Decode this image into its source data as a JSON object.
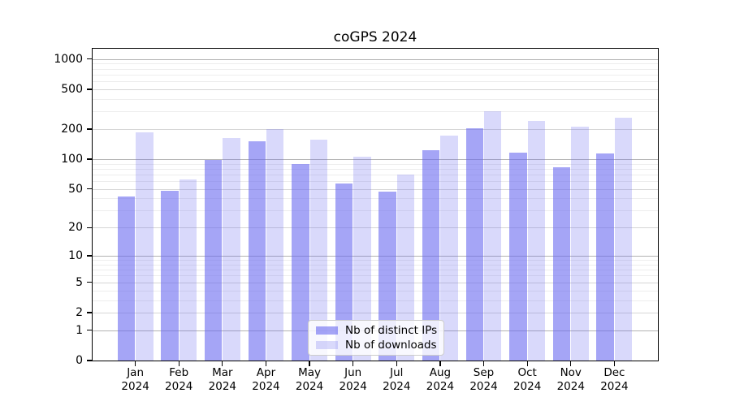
{
  "chart_data": {
    "type": "bar",
    "title": "coGPS 2024",
    "x_categories": [
      "Jan",
      "Feb",
      "Mar",
      "Apr",
      "May",
      "Jun",
      "Jul",
      "Aug",
      "Sep",
      "Oct",
      "Nov",
      "Dec"
    ],
    "x_year": "2024",
    "series": [
      {
        "name": "Nb of distinct IPs",
        "color": "rgba(105,105,240,0.60)",
        "values": [
          42,
          48,
          98,
          150,
          89,
          57,
          47,
          124,
          204,
          117,
          83,
          115
        ]
      },
      {
        "name": "Nb of downloads",
        "color": "rgba(105,105,240,0.25)",
        "values": [
          185,
          62,
          164,
          200,
          158,
          106,
          70,
          172,
          300,
          240,
          210,
          260
        ]
      }
    ],
    "y_scale": "log10(1+x)",
    "y_ticks": [
      0,
      1,
      2,
      5,
      10,
      20,
      50,
      100,
      200,
      500,
      1000
    ],
    "y_max": 1280,
    "grid": {
      "horizontal_major": true,
      "horizontal_minor": true
    },
    "legend": {
      "position": "lower-center",
      "entries": [
        "Nb of distinct IPs",
        "Nb of downloads"
      ]
    }
  }
}
